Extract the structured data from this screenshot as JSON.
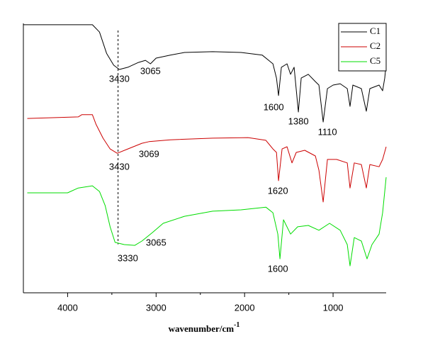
{
  "chart_data": {
    "type": "line",
    "xlabel": "wavenumber/cm",
    "xlabel_superscript": "-1",
    "xlim": [
      4500,
      400
    ],
    "xticks": [
      4000,
      3000,
      2000,
      1000
    ],
    "ylim": [
      0,
      100
    ],
    "reference_line": 3430,
    "legend": "upper right",
    "series": [
      {
        "name": "C1",
        "color": "#000000",
        "x": [
          4496,
          3720,
          3640,
          3560,
          3480,
          3416,
          3320,
          3200,
          3120,
          3064,
          3000,
          2840,
          2680,
          2360,
          2040,
          1800,
          1680,
          1640,
          1616,
          1584,
          1520,
          1480,
          1440,
          1392,
          1360,
          1280,
          1200,
          1160,
          1112,
          1064,
          1000,
          920,
          840,
          808,
          776,
          680,
          624,
          584,
          480,
          440,
          416,
          400
        ],
        "values": [
          99.5,
          99.5,
          96.8,
          88.9,
          84.5,
          82.9,
          83.7,
          85.5,
          86.3,
          85.0,
          87.1,
          88.2,
          89.2,
          89.5,
          89.2,
          88.2,
          85.0,
          79.7,
          73.2,
          83.7,
          85.0,
          81.1,
          83.7,
          67.1,
          79.7,
          81.1,
          78.4,
          77.1,
          63.4,
          75.8,
          77.1,
          77.6,
          75.8,
          69.2,
          77.1,
          75.8,
          67.4,
          75.8,
          77.1,
          75.0,
          79.7,
          85.0
        ]
      },
      {
        "name": "C2",
        "color": "#cc0000",
        "x": [
          4456,
          3880,
          3840,
          3720,
          3680,
          3600,
          3520,
          3440,
          3320,
          3160,
          3080,
          2840,
          2360,
          1960,
          1760,
          1680,
          1640,
          1616,
          1576,
          1520,
          1464,
          1416,
          1320,
          1200,
          1160,
          1112,
          1064,
          960,
          840,
          808,
          760,
          680,
          624,
          584,
          480,
          440,
          400
        ],
        "values": [
          64.7,
          65.3,
          66.1,
          66.1,
          62.6,
          57.4,
          53.4,
          51.8,
          53.4,
          55.5,
          56.1,
          56.8,
          57.4,
          57.6,
          56.6,
          53.4,
          52.1,
          41.6,
          53.4,
          54.2,
          48.2,
          52.1,
          52.9,
          50.8,
          45.5,
          33.7,
          49.5,
          49.5,
          48.2,
          38.9,
          48.2,
          47.6,
          38.9,
          47.6,
          46.8,
          49.5,
          54.2
        ]
      },
      {
        "name": "C5",
        "color": "#00dd00",
        "x": [
          4456,
          4000,
          3880,
          3720,
          3640,
          3576,
          3520,
          3464,
          3360,
          3240,
          3160,
          3040,
          2920,
          2680,
          2360,
          2040,
          1760,
          1680,
          1624,
          1600,
          1560,
          1480,
          1400,
          1280,
          1160,
          1040,
          920,
          840,
          808,
          760,
          680,
          616,
          560,
          480,
          440,
          400
        ],
        "values": [
          37.1,
          37.1,
          38.9,
          39.7,
          37.6,
          32.4,
          24.5,
          18.7,
          17.9,
          17.6,
          19.2,
          22.4,
          25.8,
          28.4,
          30.3,
          30.8,
          31.8,
          29.7,
          21.8,
          12.6,
          27.1,
          21.8,
          24.5,
          25.0,
          23.2,
          25.8,
          23.2,
          17.9,
          10.0,
          20.5,
          19.2,
          12.6,
          17.9,
          21.8,
          29.7,
          42.9
        ]
      }
    ],
    "annotations": [
      {
        "text": "3430",
        "x": 3416,
        "y": 79.2
      },
      {
        "text": "3065",
        "x": 3064,
        "y": 82.1
      },
      {
        "text": "1600",
        "x": 1672,
        "y": 68.7
      },
      {
        "text": "1380",
        "x": 1392,
        "y": 63.4
      },
      {
        "text": "1110",
        "x": 1064,
        "y": 59.5
      },
      {
        "text": "3430",
        "x": 3416,
        "y": 46.6
      },
      {
        "text": "3069",
        "x": 3080,
        "y": 51.3
      },
      {
        "text": "1620",
        "x": 1624,
        "y": 37.6
      },
      {
        "text": "3330",
        "x": 3320,
        "y": 12.6
      },
      {
        "text": "3065",
        "x": 3000,
        "y": 18.4
      },
      {
        "text": "1600",
        "x": 1624,
        "y": 8.7
      }
    ]
  }
}
